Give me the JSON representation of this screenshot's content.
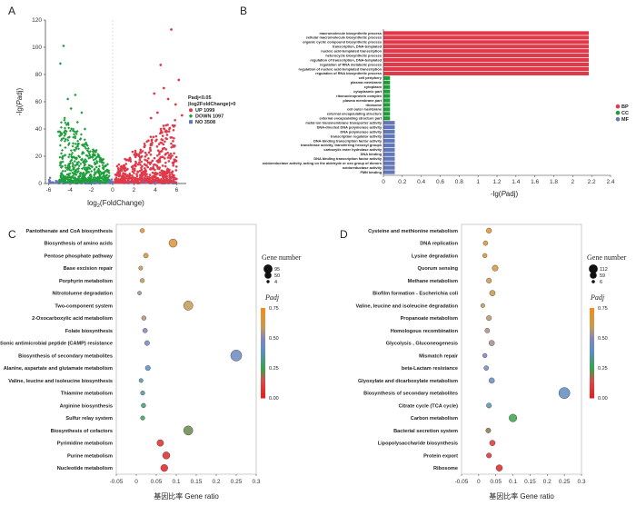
{
  "chart_data": [
    {
      "panel": "A",
      "type": "scatter",
      "xlabel_pre": "log",
      "xlabel_sub": "2",
      "xlabel_post": "(FoldChange)",
      "ylabel_pre": "-lg(",
      "ylabel_ital": "P",
      "ylabel_post": "adj)",
      "xlim": [
        -6,
        7
      ],
      "ylim": [
        0,
        115
      ],
      "xticks": [
        "-6",
        "-4",
        "-2",
        "0",
        "2",
        "4",
        "6"
      ],
      "yticks": [
        "0",
        "20",
        "40",
        "60",
        "80",
        "100",
        "120"
      ],
      "legend_title_1": "Padj<0.05",
      "legend_title_2": "|log2FoldChange|>0",
      "legend": [
        {
          "label": "UP 1099",
          "color": "#e03a4a"
        },
        {
          "label": "DOWN 1097",
          "color": "#1e9e3a"
        },
        {
          "label": "NO 3508",
          "color": "#6477b8"
        }
      ],
      "outliers_up": [
        [
          5.5,
          113
        ],
        [
          4.5,
          87
        ],
        [
          6.2,
          76
        ],
        [
          5.9,
          58
        ],
        [
          4.8,
          70
        ],
        [
          3.9,
          66
        ],
        [
          5.2,
          62
        ],
        [
          6.5,
          50
        ],
        [
          4.2,
          52
        ],
        [
          3.6,
          48
        ]
      ],
      "outliers_down": [
        [
          -4.6,
          101
        ],
        [
          -4.9,
          88
        ],
        [
          -3.5,
          65
        ],
        [
          -4.2,
          62
        ],
        [
          -3.9,
          55
        ],
        [
          -2.9,
          52
        ],
        [
          -4.5,
          48
        ],
        [
          -3.3,
          45
        ],
        [
          -5.1,
          38
        ],
        [
          -2.6,
          40
        ]
      ]
    },
    {
      "panel": "B",
      "type": "bar",
      "orientation": "horizontal",
      "xlabel_pre": "-lg(",
      "xlabel_ital": "P",
      "xlabel_post": "adj)",
      "xlim": [
        0,
        2.4
      ],
      "xticks": [
        "0",
        "0.2",
        "0.4",
        "0.6",
        "0.8",
        "1",
        "1.2",
        "1.4",
        "1.6",
        "1.8",
        "2",
        "2.2",
        "2.4"
      ],
      "legend": [
        {
          "label": "BP",
          "color": "#e03a4a"
        },
        {
          "label": "CC",
          "color": "#1e9e3a"
        },
        {
          "label": "MF",
          "color": "#6477b8"
        }
      ],
      "bars": [
        {
          "term": "macromolecule biosynthetic process",
          "value": 2.17,
          "group": "BP"
        },
        {
          "term": "cellular macromolecule biosynthetic process",
          "value": 2.17,
          "group": "BP"
        },
        {
          "term": "organic cyclic compound biosynthetic process",
          "value": 2.17,
          "group": "BP"
        },
        {
          "term": "transcription, DNA-templated",
          "value": 2.17,
          "group": "BP"
        },
        {
          "term": "nucleic acid-templated transcription",
          "value": 2.17,
          "group": "BP"
        },
        {
          "term": "heterocycle biosynthetic process",
          "value": 2.17,
          "group": "BP"
        },
        {
          "term": "regulation of transcription, DNA-templated",
          "value": 2.17,
          "group": "BP"
        },
        {
          "term": "regulation of RNA metabolic process",
          "value": 2.17,
          "group": "BP"
        },
        {
          "term": "regulation of nucleic acid-templated transcription",
          "value": 2.17,
          "group": "BP"
        },
        {
          "term": "regulation of RNA biosynthetic process",
          "value": 2.17,
          "group": "BP"
        },
        {
          "term": "cell periphery",
          "value": 0.07,
          "group": "CC"
        },
        {
          "term": "plasma membrane",
          "value": 0.07,
          "group": "CC"
        },
        {
          "term": "cytoplasm",
          "value": 0.07,
          "group": "CC"
        },
        {
          "term": "cytoplasmic part",
          "value": 0.07,
          "group": "CC"
        },
        {
          "term": "ribonucleoprotein complex",
          "value": 0.07,
          "group": "CC"
        },
        {
          "term": "plasma membrane part",
          "value": 0.07,
          "group": "CC"
        },
        {
          "term": "ribosome",
          "value": 0.07,
          "group": "CC"
        },
        {
          "term": "cell outer membrane",
          "value": 0.07,
          "group": "CC"
        },
        {
          "term": "external encapsulating structure",
          "value": 0.07,
          "group": "CC"
        },
        {
          "term": "external encapsulating structure part",
          "value": 0.07,
          "group": "CC"
        },
        {
          "term": "metal ion transmembrane transporter activity",
          "value": 0.12,
          "group": "MF"
        },
        {
          "term": "DNA-directed DNA polymerase activity",
          "value": 0.12,
          "group": "MF"
        },
        {
          "term": "DNA polymerase activity",
          "value": 0.12,
          "group": "MF"
        },
        {
          "term": "transcription regulator activity",
          "value": 0.12,
          "group": "MF"
        },
        {
          "term": "DNA-binding transcription factor activity",
          "value": 0.12,
          "group": "MF"
        },
        {
          "term": "transferase activity, transferring hexosyl groups",
          "value": 0.12,
          "group": "MF"
        },
        {
          "term": "carboxylic ester hydrolase activity",
          "value": 0.12,
          "group": "MF"
        },
        {
          "term": "DNA binding",
          "value": 0.12,
          "group": "MF"
        },
        {
          "term": "DNA binding transcription factor activity",
          "value": 0.12,
          "group": "MF"
        },
        {
          "term": "oxidoreductase activity, acting on the aldehyde or oxo group of donors",
          "value": 0.12,
          "group": "MF"
        },
        {
          "term": "oxidoreductase activity",
          "value": 0.12,
          "group": "MF"
        },
        {
          "term": "FMN binding",
          "value": 0.12,
          "group": "MF"
        }
      ]
    },
    {
      "panel": "C",
      "type": "scatter",
      "xlabel": "基因比率 Gene ratio",
      "xlim": [
        -0.05,
        0.3
      ],
      "xticks": [
        "-0.05",
        "0",
        "0.05",
        "0.1",
        "0.15",
        "0.2",
        "0.25",
        "0.3"
      ],
      "size_title": "Gene number",
      "size_legend": [
        "95",
        "50",
        "4"
      ],
      "color_title": "Padj",
      "color_ticks": [
        "0.75",
        "0.50",
        "0.25",
        "0.00"
      ],
      "points": [
        {
          "term": "Pantothenate and CoA biosynthesis",
          "x": 0.015,
          "n": 6,
          "padj": 0.72
        },
        {
          "term": "Biosynthesis of amino acids",
          "x": 0.092,
          "n": 45,
          "padj": 0.68
        },
        {
          "term": "Pentose phosphate pathway",
          "x": 0.024,
          "n": 9,
          "padj": 0.66
        },
        {
          "term": "Base excision repair",
          "x": 0.011,
          "n": 5,
          "padj": 0.62
        },
        {
          "term": "Porphyrin metabolism",
          "x": 0.015,
          "n": 6,
          "padj": 0.6
        },
        {
          "term": "Nitrotoluene degradation",
          "x": 0.008,
          "n": 4,
          "padj": 0.55
        },
        {
          "term": "Two-component system",
          "x": 0.13,
          "n": 62,
          "padj": 0.6
        },
        {
          "term": "2-Oxocarboxylic acid metabolism",
          "x": 0.019,
          "n": 7,
          "padj": 0.57
        },
        {
          "term": "Folate biosynthesis",
          "x": 0.022,
          "n": 8,
          "padj": 0.5
        },
        {
          "term": "Cationic antimicrobial peptide (CAMP) resistance",
          "x": 0.027,
          "n": 10,
          "padj": 0.47
        },
        {
          "term": "Biosynthesis of secondary metabolites",
          "x": 0.25,
          "n": 95,
          "padj": 0.45
        },
        {
          "term": "Alanine, aspartate and glutamate metabolism",
          "x": 0.029,
          "n": 11,
          "padj": 0.4
        },
        {
          "term": "Valine, leucine and isoleucine biosynthesis",
          "x": 0.012,
          "n": 5,
          "padj": 0.38
        },
        {
          "term": "Thiamine metabolism",
          "x": 0.016,
          "n": 6,
          "padj": 0.36
        },
        {
          "term": "Arginine biosynthesis",
          "x": 0.018,
          "n": 7,
          "padj": 0.3
        },
        {
          "term": "Sulfur relay system",
          "x": 0.016,
          "n": 6,
          "padj": 0.25
        },
        {
          "term": "Biosynthesis of cofactors",
          "x": 0.13,
          "n": 60,
          "padj": 0.22
        },
        {
          "term": "Pyrimidine metabolism",
          "x": 0.06,
          "n": 25,
          "padj": 0.05
        },
        {
          "term": "Purine metabolism",
          "x": 0.075,
          "n": 32,
          "padj": 0.04
        },
        {
          "term": "Nucleotide metabolism",
          "x": 0.07,
          "n": 30,
          "padj": 0.02
        }
      ]
    },
    {
      "panel": "D",
      "type": "scatter",
      "xlabel": "基因比率 Gene ratio",
      "xlim": [
        -0.05,
        0.3
      ],
      "xticks": [
        "-0.05",
        "0",
        "0.05",
        "0.1",
        "0.15",
        "0.2",
        "0.25",
        "0.3"
      ],
      "size_title": "Gene number",
      "size_legend": [
        "112",
        "59",
        "6"
      ],
      "color_title": "Padj",
      "color_ticks": [
        "0.75",
        "0.50",
        "0.25",
        "0.00"
      ],
      "points": [
        {
          "term": "Cysteine and methionine metabolism",
          "x": 0.03,
          "n": 14,
          "padj": 0.7
        },
        {
          "term": "DNA replication",
          "x": 0.02,
          "n": 9,
          "padj": 0.7
        },
        {
          "term": "Lysine degradation",
          "x": 0.018,
          "n": 8,
          "padj": 0.68
        },
        {
          "term": "Quorum sensing",
          "x": 0.048,
          "n": 21,
          "padj": 0.66
        },
        {
          "term": "Methane metabolism",
          "x": 0.03,
          "n": 13,
          "padj": 0.64
        },
        {
          "term": "Biofilm formation - Escherichia coli",
          "x": 0.04,
          "n": 18,
          "padj": 0.62
        },
        {
          "term": "Valine, leucine and isoleucine degradation",
          "x": 0.012,
          "n": 6,
          "padj": 0.6
        },
        {
          "term": "Propanoate metabolism",
          "x": 0.03,
          "n": 13,
          "padj": 0.58
        },
        {
          "term": "Homologous recombination",
          "x": 0.025,
          "n": 11,
          "padj": 0.56
        },
        {
          "term": "Glycolysis , Gluconeogenesis",
          "x": 0.038,
          "n": 17,
          "padj": 0.55
        },
        {
          "term": "Mismatch repair",
          "x": 0.018,
          "n": 8,
          "padj": 0.5
        },
        {
          "term": "beta-Lactam resistance",
          "x": 0.022,
          "n": 10,
          "padj": 0.47
        },
        {
          "term": "Glyoxylate and dicarboxylate metabolism",
          "x": 0.038,
          "n": 17,
          "padj": 0.43
        },
        {
          "term": "Biosynthesis of secondary metabolites",
          "x": 0.25,
          "n": 112,
          "padj": 0.42
        },
        {
          "term": "Citrate cycle (TCA cycle)",
          "x": 0.03,
          "n": 13,
          "padj": 0.38
        },
        {
          "term": "Carbon metabolism",
          "x": 0.1,
          "n": 46,
          "padj": 0.25
        },
        {
          "term": "Bacterial secretion system",
          "x": 0.028,
          "n": 12,
          "padj": 0.2
        },
        {
          "term": "Lipopolysaccharide biosynthesis",
          "x": 0.04,
          "n": 18,
          "padj": 0.08
        },
        {
          "term": "Protein export",
          "x": 0.03,
          "n": 13,
          "padj": 0.06
        },
        {
          "term": "Ribosome",
          "x": 0.06,
          "n": 27,
          "padj": 0.03
        }
      ]
    }
  ]
}
